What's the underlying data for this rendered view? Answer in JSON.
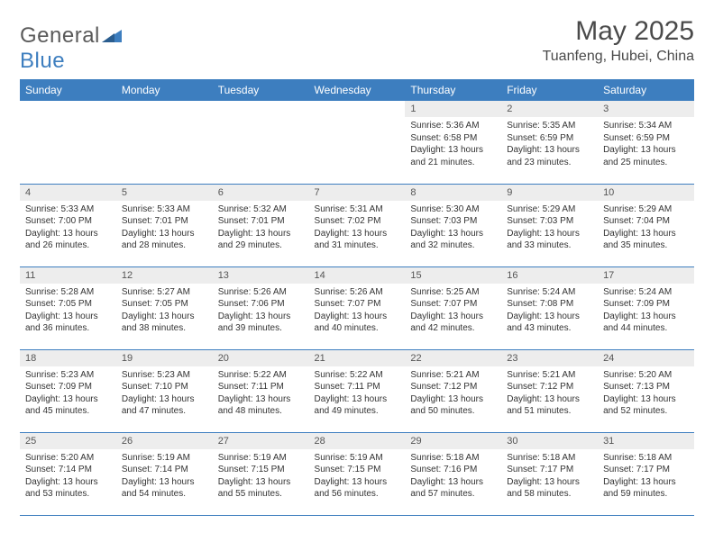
{
  "brand": {
    "text1": "General",
    "text2": "Blue"
  },
  "title": "May 2025",
  "location": "Tuanfeng, Hubei, China",
  "colors": {
    "header_bg": "#3d7ebf",
    "header_fg": "#ffffff",
    "daynum_bg": "#ededed",
    "border": "#3d7ebf",
    "text": "#333333",
    "title": "#4a4a4a"
  },
  "weekdays": [
    "Sunday",
    "Monday",
    "Tuesday",
    "Wednesday",
    "Thursday",
    "Friday",
    "Saturday"
  ],
  "weeks": [
    [
      {
        "n": "",
        "sunrise": "",
        "sunset": "",
        "daylight": ""
      },
      {
        "n": "",
        "sunrise": "",
        "sunset": "",
        "daylight": ""
      },
      {
        "n": "",
        "sunrise": "",
        "sunset": "",
        "daylight": ""
      },
      {
        "n": "",
        "sunrise": "",
        "sunset": "",
        "daylight": ""
      },
      {
        "n": "1",
        "sunrise": "Sunrise: 5:36 AM",
        "sunset": "Sunset: 6:58 PM",
        "daylight": "Daylight: 13 hours and 21 minutes."
      },
      {
        "n": "2",
        "sunrise": "Sunrise: 5:35 AM",
        "sunset": "Sunset: 6:59 PM",
        "daylight": "Daylight: 13 hours and 23 minutes."
      },
      {
        "n": "3",
        "sunrise": "Sunrise: 5:34 AM",
        "sunset": "Sunset: 6:59 PM",
        "daylight": "Daylight: 13 hours and 25 minutes."
      }
    ],
    [
      {
        "n": "4",
        "sunrise": "Sunrise: 5:33 AM",
        "sunset": "Sunset: 7:00 PM",
        "daylight": "Daylight: 13 hours and 26 minutes."
      },
      {
        "n": "5",
        "sunrise": "Sunrise: 5:33 AM",
        "sunset": "Sunset: 7:01 PM",
        "daylight": "Daylight: 13 hours and 28 minutes."
      },
      {
        "n": "6",
        "sunrise": "Sunrise: 5:32 AM",
        "sunset": "Sunset: 7:01 PM",
        "daylight": "Daylight: 13 hours and 29 minutes."
      },
      {
        "n": "7",
        "sunrise": "Sunrise: 5:31 AM",
        "sunset": "Sunset: 7:02 PM",
        "daylight": "Daylight: 13 hours and 31 minutes."
      },
      {
        "n": "8",
        "sunrise": "Sunrise: 5:30 AM",
        "sunset": "Sunset: 7:03 PM",
        "daylight": "Daylight: 13 hours and 32 minutes."
      },
      {
        "n": "9",
        "sunrise": "Sunrise: 5:29 AM",
        "sunset": "Sunset: 7:03 PM",
        "daylight": "Daylight: 13 hours and 33 minutes."
      },
      {
        "n": "10",
        "sunrise": "Sunrise: 5:29 AM",
        "sunset": "Sunset: 7:04 PM",
        "daylight": "Daylight: 13 hours and 35 minutes."
      }
    ],
    [
      {
        "n": "11",
        "sunrise": "Sunrise: 5:28 AM",
        "sunset": "Sunset: 7:05 PM",
        "daylight": "Daylight: 13 hours and 36 minutes."
      },
      {
        "n": "12",
        "sunrise": "Sunrise: 5:27 AM",
        "sunset": "Sunset: 7:05 PM",
        "daylight": "Daylight: 13 hours and 38 minutes."
      },
      {
        "n": "13",
        "sunrise": "Sunrise: 5:26 AM",
        "sunset": "Sunset: 7:06 PM",
        "daylight": "Daylight: 13 hours and 39 minutes."
      },
      {
        "n": "14",
        "sunrise": "Sunrise: 5:26 AM",
        "sunset": "Sunset: 7:07 PM",
        "daylight": "Daylight: 13 hours and 40 minutes."
      },
      {
        "n": "15",
        "sunrise": "Sunrise: 5:25 AM",
        "sunset": "Sunset: 7:07 PM",
        "daylight": "Daylight: 13 hours and 42 minutes."
      },
      {
        "n": "16",
        "sunrise": "Sunrise: 5:24 AM",
        "sunset": "Sunset: 7:08 PM",
        "daylight": "Daylight: 13 hours and 43 minutes."
      },
      {
        "n": "17",
        "sunrise": "Sunrise: 5:24 AM",
        "sunset": "Sunset: 7:09 PM",
        "daylight": "Daylight: 13 hours and 44 minutes."
      }
    ],
    [
      {
        "n": "18",
        "sunrise": "Sunrise: 5:23 AM",
        "sunset": "Sunset: 7:09 PM",
        "daylight": "Daylight: 13 hours and 45 minutes."
      },
      {
        "n": "19",
        "sunrise": "Sunrise: 5:23 AM",
        "sunset": "Sunset: 7:10 PM",
        "daylight": "Daylight: 13 hours and 47 minutes."
      },
      {
        "n": "20",
        "sunrise": "Sunrise: 5:22 AM",
        "sunset": "Sunset: 7:11 PM",
        "daylight": "Daylight: 13 hours and 48 minutes."
      },
      {
        "n": "21",
        "sunrise": "Sunrise: 5:22 AM",
        "sunset": "Sunset: 7:11 PM",
        "daylight": "Daylight: 13 hours and 49 minutes."
      },
      {
        "n": "22",
        "sunrise": "Sunrise: 5:21 AM",
        "sunset": "Sunset: 7:12 PM",
        "daylight": "Daylight: 13 hours and 50 minutes."
      },
      {
        "n": "23",
        "sunrise": "Sunrise: 5:21 AM",
        "sunset": "Sunset: 7:12 PM",
        "daylight": "Daylight: 13 hours and 51 minutes."
      },
      {
        "n": "24",
        "sunrise": "Sunrise: 5:20 AM",
        "sunset": "Sunset: 7:13 PM",
        "daylight": "Daylight: 13 hours and 52 minutes."
      }
    ],
    [
      {
        "n": "25",
        "sunrise": "Sunrise: 5:20 AM",
        "sunset": "Sunset: 7:14 PM",
        "daylight": "Daylight: 13 hours and 53 minutes."
      },
      {
        "n": "26",
        "sunrise": "Sunrise: 5:19 AM",
        "sunset": "Sunset: 7:14 PM",
        "daylight": "Daylight: 13 hours and 54 minutes."
      },
      {
        "n": "27",
        "sunrise": "Sunrise: 5:19 AM",
        "sunset": "Sunset: 7:15 PM",
        "daylight": "Daylight: 13 hours and 55 minutes."
      },
      {
        "n": "28",
        "sunrise": "Sunrise: 5:19 AM",
        "sunset": "Sunset: 7:15 PM",
        "daylight": "Daylight: 13 hours and 56 minutes."
      },
      {
        "n": "29",
        "sunrise": "Sunrise: 5:18 AM",
        "sunset": "Sunset: 7:16 PM",
        "daylight": "Daylight: 13 hours and 57 minutes."
      },
      {
        "n": "30",
        "sunrise": "Sunrise: 5:18 AM",
        "sunset": "Sunset: 7:17 PM",
        "daylight": "Daylight: 13 hours and 58 minutes."
      },
      {
        "n": "31",
        "sunrise": "Sunrise: 5:18 AM",
        "sunset": "Sunset: 7:17 PM",
        "daylight": "Daylight: 13 hours and 59 minutes."
      }
    ]
  ]
}
